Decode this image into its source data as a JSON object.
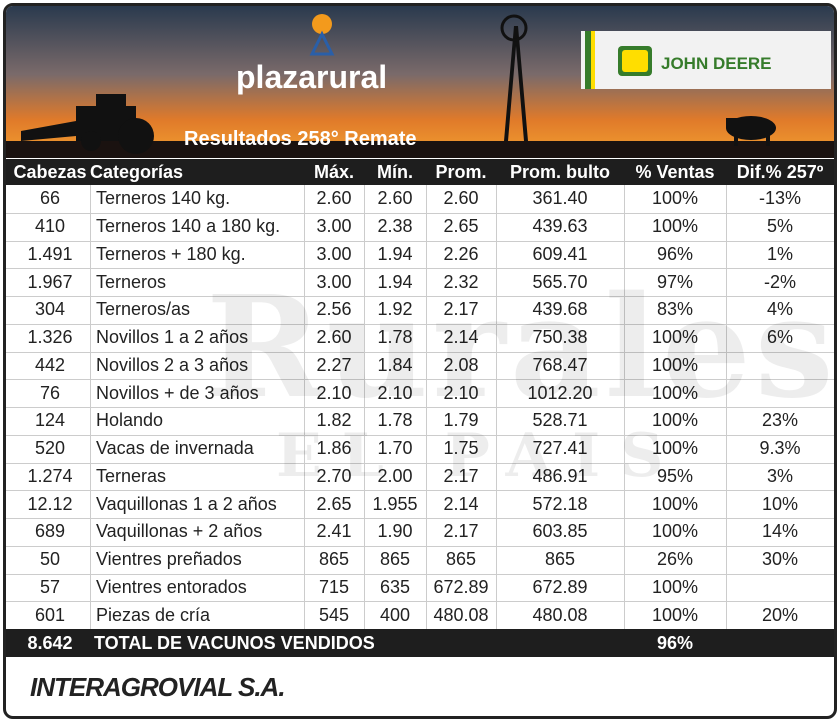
{
  "header": {
    "brand": "plazarural",
    "sponsor": "JOHN DEERE",
    "title": "Resultados 258° Remate"
  },
  "watermark": {
    "main": "Rurales",
    "sub": "EL PAIS"
  },
  "table": {
    "columns": [
      "Cabezas",
      "Categorías",
      "Máx.",
      "Mín.",
      "Prom.",
      "Prom. bulto",
      "% Ventas",
      "Dif.% 257º"
    ],
    "rows": [
      [
        "66",
        "Terneros 140 kg.",
        "2.60",
        "2.60",
        "2.60",
        "361.40",
        "100%",
        "-13%"
      ],
      [
        "410",
        "Terneros 140 a 180 kg.",
        "3.00",
        "2.38",
        "2.65",
        "439.63",
        "100%",
        "5%"
      ],
      [
        "1.491",
        "Terneros + 180 kg.",
        "3.00",
        "1.94",
        "2.26",
        "609.41",
        "96%",
        "1%"
      ],
      [
        "1.967",
        "Terneros",
        "3.00",
        "1.94",
        "2.32",
        "565.70",
        "97%",
        "-2%"
      ],
      [
        "304",
        "Terneros/as",
        "2.56",
        "1.92",
        "2.17",
        "439.68",
        "83%",
        "4%"
      ],
      [
        "1.326",
        "Novillos 1 a 2 años",
        "2.60",
        "1.78",
        "2.14",
        "750.38",
        "100%",
        "6%"
      ],
      [
        "442",
        "Novillos 2 a 3 años",
        "2.27",
        "1.84",
        "2.08",
        "768.47",
        "100%"
      ],
      [
        "76",
        "Novillos + de 3 años",
        "2.10",
        "2.10",
        "2.10",
        "1012.20",
        "100%"
      ],
      [
        "124",
        "Holando",
        "1.82",
        "1.78",
        "1.79",
        "528.71",
        "100%",
        "23%"
      ],
      [
        "520",
        "Vacas de invernada",
        "1.86",
        "1.70",
        "1.75",
        "727.41",
        "100%",
        "9.3%"
      ],
      [
        "1.274",
        "Terneras",
        "2.70",
        "2.00",
        "2.17",
        "486.91",
        "95%",
        "3%"
      ],
      [
        "12.12",
        "Vaquillonas 1 a 2 años",
        "2.65",
        "1.955",
        "2.14",
        "572.18",
        "100%",
        "10%"
      ],
      [
        "689",
        "Vaquillonas + 2 años",
        "2.41",
        "1.90",
        "2.17",
        "603.85",
        "100%",
        "14%"
      ],
      [
        "50",
        "Vientres preñados",
        "865",
        "865",
        "865",
        "865",
        "26%",
        "30%"
      ],
      [
        "57",
        "Vientres entorados",
        "715",
        "635",
        "672.89",
        "672.89",
        "100%"
      ],
      [
        "601",
        "Piezas de cría",
        "545",
        "400",
        "480.08",
        "480.08",
        "100%",
        "20%"
      ]
    ],
    "total": {
      "heads": "8.642",
      "label": "TOTAL DE VACUNOS VENDIDOS",
      "sales": "96%"
    }
  },
  "footer": {
    "company": "INTERAGROVIAL S.A."
  }
}
